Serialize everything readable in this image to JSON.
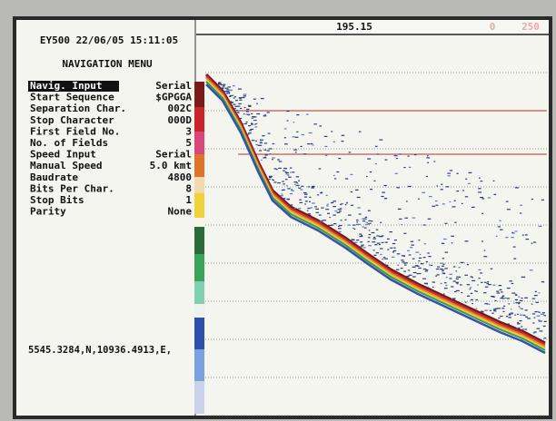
{
  "header": {
    "device_time": "EY500 22/06/05 15:11:05",
    "menu_title": "NAVIGATION MENU"
  },
  "menu": {
    "items": [
      {
        "label": "Navig. Input",
        "value": "Serial"
      },
      {
        "label": "Start Sequence",
        "value": "$GPGGA"
      },
      {
        "label": "Separation Char.",
        "value": "002C"
      },
      {
        "label": "Stop Character",
        "value": "000D"
      },
      {
        "label": "First Field No.",
        "value": "3"
      },
      {
        "label": "No. of Fields",
        "value": "5"
      },
      {
        "label": "Speed Input",
        "value": "Serial"
      },
      {
        "label": "Manual Speed",
        "value": "5.0 kmt"
      },
      {
        "label": "Baudrate",
        "value": "4800"
      },
      {
        "label": "Bits Per Char.",
        "value": "8"
      },
      {
        "label": "Stop Bits",
        "value": "1"
      },
      {
        "label": "Parity",
        "value": "None"
      }
    ]
  },
  "position": "5545.3284,N,10936.4913,E,",
  "echogram": {
    "depth_readout": "195.15",
    "range_start": "0",
    "range_end": "250"
  }
}
